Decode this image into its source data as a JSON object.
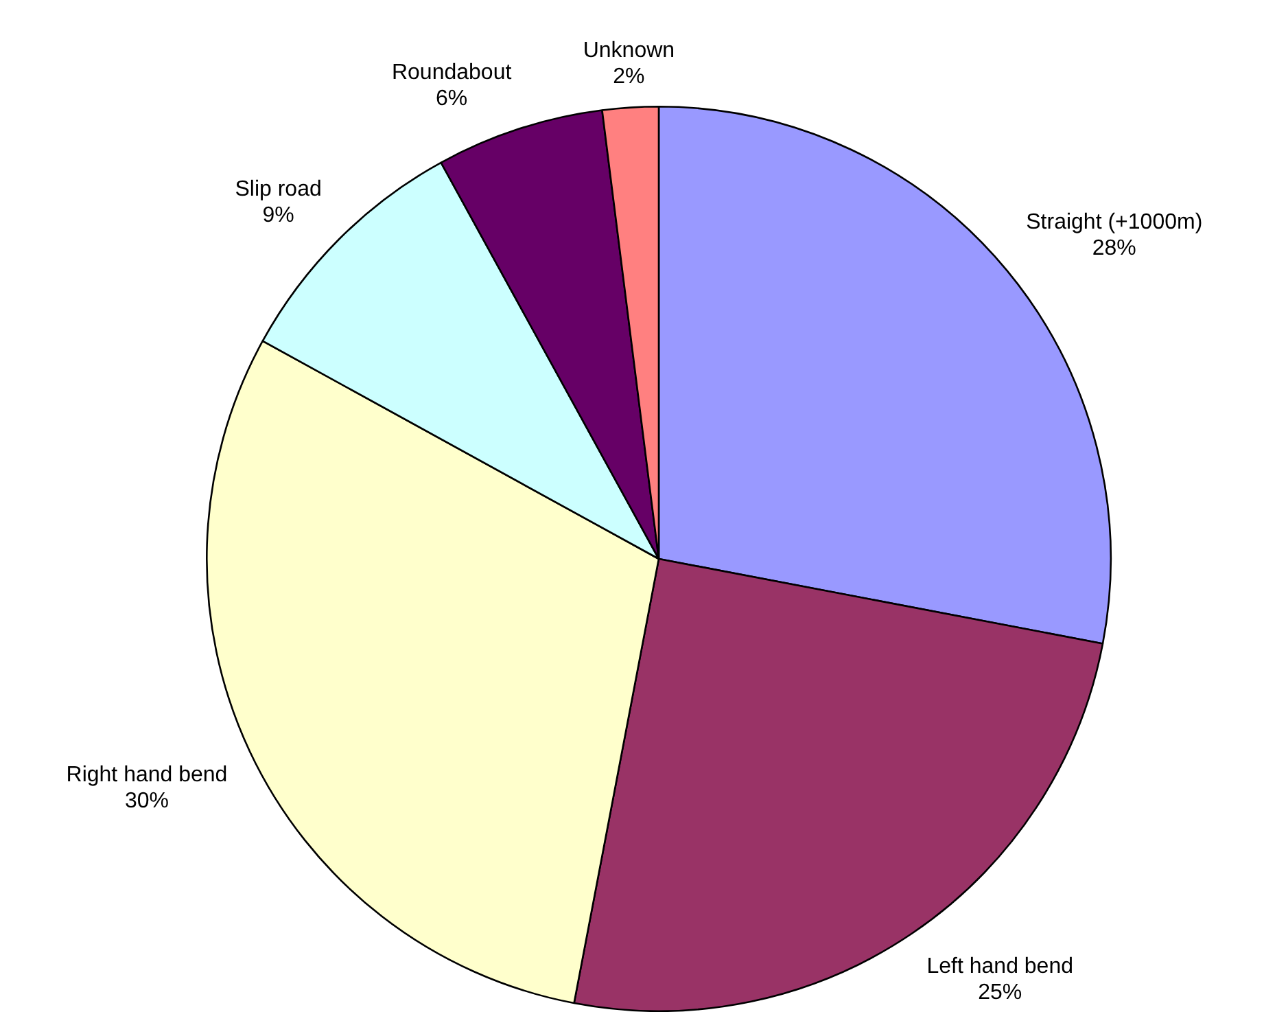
{
  "chart_data": {
    "type": "pie",
    "categories": [
      "Straight (+1000m)",
      "Left hand bend",
      "Right hand bend",
      "Slip road",
      "Roundabout",
      "Unknown"
    ],
    "values": [
      28,
      25,
      30,
      9,
      6,
      2
    ],
    "value_labels": [
      "28%",
      "25%",
      "30%",
      "9%",
      "6%",
      "2%"
    ],
    "colors": [
      "#9999ff",
      "#993366",
      "#ffffcc",
      "#ccffff",
      "#660066",
      "#ff8080"
    ]
  }
}
